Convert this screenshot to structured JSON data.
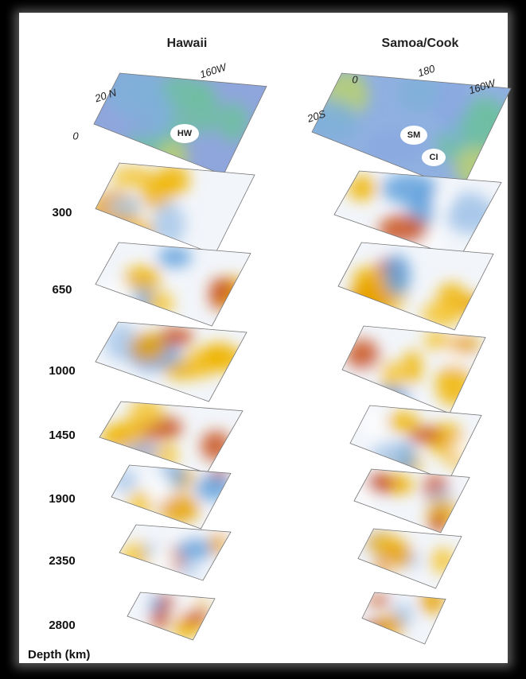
{
  "columns": [
    {
      "title": "Hawaii",
      "map_labels": [
        "160W",
        "20 N",
        "0"
      ],
      "hotspots": [
        "HW"
      ]
    },
    {
      "title": "Samoa/Cook",
      "map_labels": [
        "180",
        "160W",
        "0",
        "20S"
      ],
      "hotspots": [
        "SM",
        "CI"
      ]
    }
  ],
  "depths": [
    300,
    650,
    1000,
    1450,
    1900,
    2350,
    2800
  ],
  "depth_axis_label": "Depth (km)"
}
